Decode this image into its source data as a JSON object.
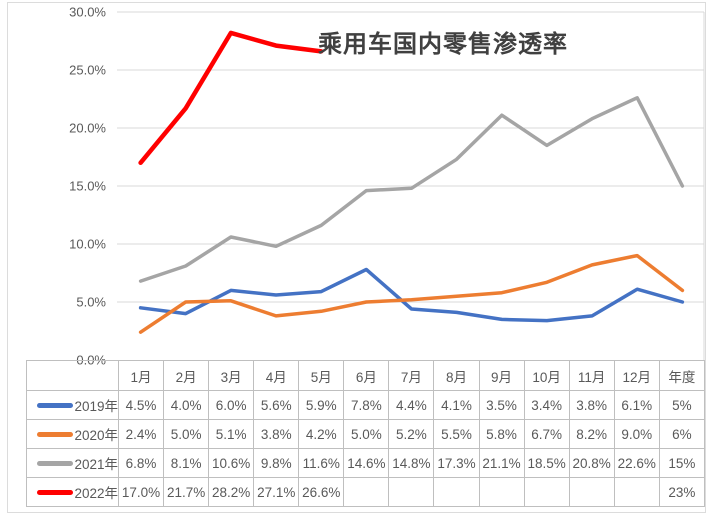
{
  "chart_data": {
    "type": "line",
    "title": "乘用车国内零售渗透率",
    "categories": [
      "1月",
      "2月",
      "3月",
      "4月",
      "5月",
      "6月",
      "7月",
      "8月",
      "9月",
      "10月",
      "11月",
      "12月",
      "年度"
    ],
    "series": [
      {
        "name": "2019年",
        "color": "#4472C4",
        "values": [
          4.5,
          4.0,
          6.0,
          5.6,
          5.9,
          7.8,
          4.4,
          4.1,
          3.5,
          3.4,
          3.8,
          6.1,
          5
        ]
      },
      {
        "name": "2020年",
        "color": "#ED7D31",
        "values": [
          2.4,
          5.0,
          5.1,
          3.8,
          4.2,
          5.0,
          5.2,
          5.5,
          5.8,
          6.7,
          8.2,
          9.0,
          6
        ]
      },
      {
        "name": "2021年",
        "color": "#A5A5A5",
        "values": [
          6.8,
          8.1,
          10.6,
          9.8,
          11.6,
          14.6,
          14.8,
          17.3,
          21.1,
          18.5,
          20.8,
          22.6,
          15
        ]
      },
      {
        "name": "2022年",
        "color": "#FF0000",
        "values": [
          17.0,
          21.7,
          28.2,
          27.1,
          26.6,
          null,
          null,
          null,
          null,
          null,
          null,
          null,
          null
        ]
      }
    ],
    "ylim": [
      0,
      30
    ],
    "yticks": [
      0,
      5,
      10,
      15,
      20,
      25,
      30
    ],
    "ytick_labels": [
      "0.0%",
      "5.0%",
      "10.0%",
      "15.0%",
      "20.0%",
      "25.0%",
      "30.0%"
    ],
    "grid": true,
    "legend_position": "table-left"
  },
  "table": {
    "corner_label": "",
    "columns": [
      "1月",
      "2月",
      "3月",
      "4月",
      "5月",
      "6月",
      "7月",
      "8月",
      "9月",
      "10月",
      "11月",
      "12月",
      "年度"
    ],
    "rows": [
      {
        "name": "2019年",
        "color": "#4472C4",
        "cells": [
          "4.5%",
          "4.0%",
          "6.0%",
          "5.6%",
          "5.9%",
          "7.8%",
          "4.4%",
          "4.1%",
          "3.5%",
          "3.4%",
          "3.8%",
          "6.1%",
          "5%"
        ]
      },
      {
        "name": "2020年",
        "color": "#ED7D31",
        "cells": [
          "2.4%",
          "5.0%",
          "5.1%",
          "3.8%",
          "4.2%",
          "5.0%",
          "5.2%",
          "5.5%",
          "5.8%",
          "6.7%",
          "8.2%",
          "9.0%",
          "6%"
        ]
      },
      {
        "name": "2021年",
        "color": "#A5A5A5",
        "cells": [
          "6.8%",
          "8.1%",
          "10.6%",
          "9.8%",
          "11.6%",
          "14.6%",
          "14.8%",
          "17.3%",
          "21.1%",
          "18.5%",
          "20.8%",
          "22.6%",
          "15%"
        ]
      },
      {
        "name": "2022年",
        "color": "#FF0000",
        "cells": [
          "17.0%",
          "21.7%",
          "28.2%",
          "27.1%",
          "26.6%",
          "",
          "",
          "",
          "",
          "",
          "",
          "",
          "23%"
        ]
      }
    ]
  },
  "colors": {
    "grid": "#D9D9D9",
    "table_border": "#BFBFBF",
    "text": "#595959",
    "title": "#404040",
    "background": "#FFFFFF"
  }
}
